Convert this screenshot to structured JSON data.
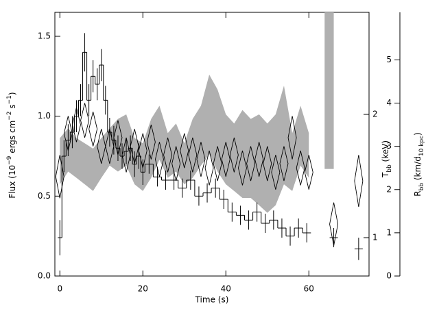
{
  "chart_data": {
    "type": "step",
    "xlabel": "Time (s)",
    "ylabel": [
      "Flux (10",
      "−9",
      " ergs cm",
      "−2",
      " s",
      "−1",
      ")"
    ],
    "y2label": [
      "T",
      "bb",
      " (keV)"
    ],
    "y3label": [
      "R",
      "bb",
      " (km/d",
      "10 kpc",
      ")"
    ],
    "xlim": [
      -1.2,
      74.5
    ],
    "ylim": [
      0,
      1.65
    ],
    "y2lim": [
      0.806,
      3.55
    ],
    "y2log": true,
    "y3lim": [
      0,
      6.1
    ],
    "xticks": [
      0,
      20,
      40,
      60
    ],
    "yticks": [
      {
        "value": 0,
        "label": "0.0"
      },
      {
        "value": 0.5,
        "label": "0.5"
      },
      {
        "value": 1,
        "label": "1.0"
      },
      {
        "value": 1.5,
        "label": "1.5"
      }
    ],
    "y2ticks": [
      1,
      2
    ],
    "y3ticks": [
      0,
      1,
      2,
      3,
      4,
      5
    ],
    "flux": {
      "color": "#000000",
      "bins": [
        -0.5,
        0.5,
        1.5,
        2.5,
        3.5,
        4.5,
        5.5,
        6.5,
        7.5,
        8.5,
        9.5,
        10.5,
        11.5,
        12.5,
        13.5,
        14.5,
        15.5,
        16.5,
        17.5,
        18.5,
        19.5,
        20.5,
        22.5,
        24.5,
        26.5,
        28.5,
        30.5,
        32.5,
        34.5,
        36.5,
        38.5,
        40.5,
        42.5,
        44.5,
        46.5,
        48.5,
        50.5,
        52.5,
        54.5,
        56.5,
        58.5,
        60.5
      ],
      "values": [
        0.24,
        0.75,
        0.85,
        0.9,
        1.0,
        1.1,
        1.4,
        1.1,
        1.25,
        1.2,
        1.32,
        1.1,
        0.9,
        0.85,
        0.8,
        0.75,
        0.78,
        0.8,
        0.7,
        0.75,
        0.65,
        0.7,
        0.62,
        0.6,
        0.6,
        0.55,
        0.6,
        0.5,
        0.52,
        0.55,
        0.48,
        0.4,
        0.38,
        0.35,
        0.4,
        0.33,
        0.35,
        0.3,
        0.25,
        0.3,
        0.27
      ],
      "errors": [
        0.11,
        0.1,
        0.1,
        0.1,
        0.1,
        0.1,
        0.12,
        0.1,
        0.1,
        0.1,
        0.1,
        0.09,
        0.09,
        0.09,
        0.08,
        0.08,
        0.08,
        0.08,
        0.08,
        0.08,
        0.08,
        0.06,
        0.06,
        0.06,
        0.06,
        0.06,
        0.06,
        0.06,
        0.06,
        0.06,
        0.06,
        0.06,
        0.06,
        0.06,
        0.06,
        0.06,
        0.06,
        0.06,
        0.06,
        0.06,
        0.06
      ]
    },
    "late": {
      "x": [
        66,
        72
      ],
      "values": [
        0.24,
        0.17
      ],
      "errors": [
        0.06,
        0.07
      ]
    },
    "band": {
      "color": "#b0b0b0",
      "x": [
        0,
        2,
        4,
        6,
        8,
        10,
        12,
        14,
        16,
        18,
        20,
        22,
        24,
        26,
        28,
        30,
        32,
        34,
        36,
        38,
        40,
        42,
        44,
        46,
        48,
        50,
        52,
        54,
        56,
        58,
        60
      ],
      "upper": [
        1.75,
        1.85,
        1.75,
        1.7,
        1.65,
        1.75,
        1.85,
        1.95,
        2.0,
        1.75,
        1.7,
        1.95,
        2.1,
        1.8,
        1.9,
        1.7,
        1.95,
        2.1,
        2.5,
        2.3,
        2.0,
        1.9,
        2.05,
        1.95,
        2.0,
        1.9,
        2.0,
        2.35,
        1.8,
        2.1,
        1.8
      ],
      "lower": [
        1.35,
        1.45,
        1.4,
        1.35,
        1.3,
        1.4,
        1.5,
        1.45,
        1.5,
        1.35,
        1.3,
        1.4,
        1.55,
        1.4,
        1.45,
        1.35,
        1.4,
        1.5,
        1.6,
        1.45,
        1.35,
        1.3,
        1.25,
        1.25,
        1.2,
        1.15,
        1.2,
        1.35,
        1.3,
        1.5,
        1.4
      ]
    },
    "diamonds": {
      "x": [
        0,
        2,
        4,
        6,
        8,
        10,
        12,
        14,
        16,
        18,
        20,
        22,
        24,
        26,
        28,
        30,
        32,
        34,
        36,
        38,
        40,
        42,
        44,
        46,
        48,
        50,
        52,
        54,
        56,
        58,
        60,
        66,
        72
      ],
      "values": [
        2.3,
        3.3,
        3.5,
        3.6,
        3.4,
        3.0,
        3.0,
        3.2,
        2.8,
        3.0,
        2.9,
        3.1,
        2.7,
        2.8,
        2.6,
        2.9,
        2.8,
        2.7,
        2.5,
        2.6,
        2.7,
        2.8,
        2.5,
        2.6,
        2.7,
        2.6,
        2.4,
        2.6,
        3.2,
        2.5,
        2.4,
        1.2,
        2.2
      ],
      "errors": [
        0.5,
        0.4,
        0.4,
        0.4,
        0.4,
        0.4,
        0.4,
        0.4,
        0.4,
        0.4,
        0.4,
        0.4,
        0.4,
        0.4,
        0.4,
        0.4,
        0.4,
        0.4,
        0.4,
        0.4,
        0.4,
        0.4,
        0.4,
        0.4,
        0.4,
        0.4,
        0.4,
        0.4,
        0.5,
        0.4,
        0.4,
        0.5,
        0.6
      ]
    },
    "shade": {
      "color": "#b0b0b0",
      "x": [
        63.8,
        66.0
      ],
      "y": [
        0.67,
        1.65
      ]
    }
  }
}
